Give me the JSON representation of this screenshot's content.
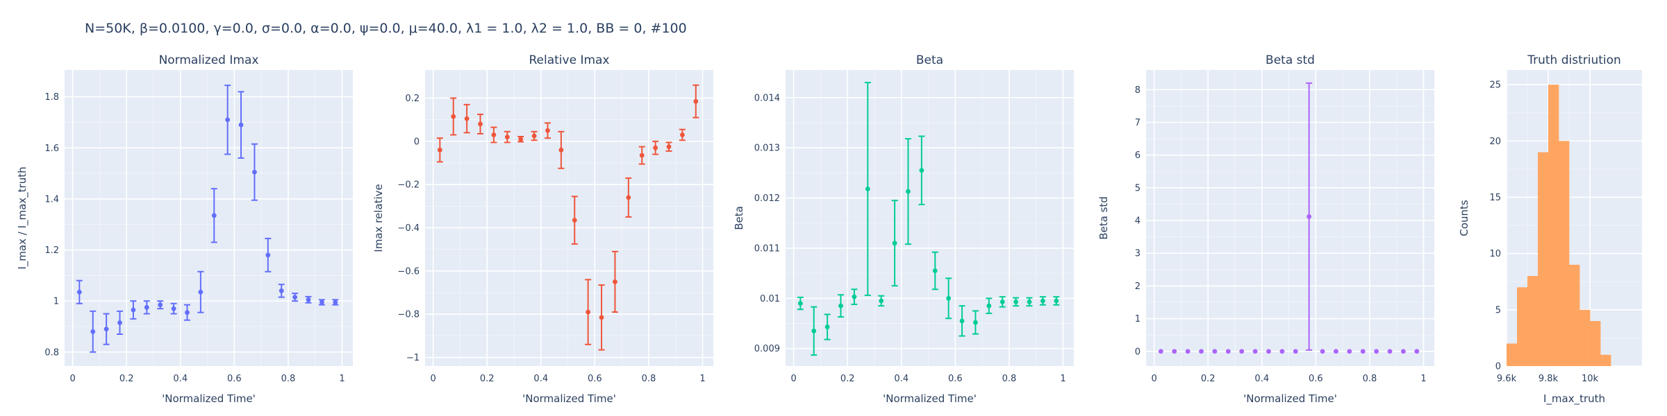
{
  "figure": {
    "title": "N=50K, β=0.0100, γ=0.0, σ=0.0,  α=0.0, ψ=0.0, μ=40.0, λ1 = 1.0, λ2 = 1.0, BB = 0, #100",
    "colors": {
      "plot_bg": "#e5ecf6",
      "grid": "#ffffff",
      "text": "#2a3f5f"
    }
  },
  "chart_data": [
    {
      "type": "scatter",
      "title": "Normalized Imax",
      "xlabel": "'Normalized Time'",
      "ylabel": "I_max / I_max_truth",
      "color": "#636efa",
      "xlim": [
        -0.03,
        1.04
      ],
      "ylim": [
        0.745,
        1.905
      ],
      "xticks": [
        0,
        0.2,
        0.4,
        0.6,
        0.8,
        1
      ],
      "xtick_labels": [
        "0",
        "0.2",
        "0.4",
        "0.6",
        "0.8",
        "1"
      ],
      "yticks": [
        0.8,
        1.0,
        1.2,
        1.4,
        1.6,
        1.8
      ],
      "ytick_labels": [
        "0.8",
        "1",
        "1.2",
        "1.4",
        "1.6",
        "1.8"
      ],
      "x": [
        0.025,
        0.075,
        0.125,
        0.175,
        0.225,
        0.275,
        0.325,
        0.375,
        0.425,
        0.475,
        0.525,
        0.575,
        0.625,
        0.675,
        0.725,
        0.775,
        0.825,
        0.875,
        0.925,
        0.975
      ],
      "y": [
        1.035,
        0.88,
        0.89,
        0.915,
        0.965,
        0.975,
        0.985,
        0.97,
        0.955,
        1.035,
        1.335,
        1.71,
        1.69,
        1.505,
        1.18,
        1.04,
        1.015,
        1.005,
        0.995,
        0.995
      ],
      "error": [
        0.045,
        0.08,
        0.06,
        0.045,
        0.035,
        0.025,
        0.015,
        0.02,
        0.03,
        0.08,
        0.105,
        0.135,
        0.13,
        0.11,
        0.065,
        0.025,
        0.015,
        0.012,
        0.01,
        0.01
      ]
    },
    {
      "type": "scatter",
      "title": "Relative Imax",
      "xlabel": "'Normalized Time'",
      "ylabel": "Imax relative",
      "color": "#ef553b",
      "xlim": [
        -0.03,
        1.04
      ],
      "ylim": [
        -1.04,
        0.33
      ],
      "xticks": [
        0,
        0.2,
        0.4,
        0.6,
        0.8,
        1
      ],
      "xtick_labels": [
        "0",
        "0.2",
        "0.4",
        "0.6",
        "0.8",
        "1"
      ],
      "yticks": [
        -1.0,
        -0.8,
        -0.6,
        -0.4,
        -0.2,
        0.0,
        0.2
      ],
      "ytick_labels": [
        "−1",
        "−0.8",
        "−0.6",
        "−0.4",
        "−0.2",
        "0",
        "0.2"
      ],
      "x": [
        0.025,
        0.075,
        0.125,
        0.175,
        0.225,
        0.275,
        0.325,
        0.375,
        0.425,
        0.475,
        0.525,
        0.575,
        0.625,
        0.675,
        0.725,
        0.775,
        0.825,
        0.875,
        0.925,
        0.975
      ],
      "y": [
        -0.04,
        0.115,
        0.105,
        0.08,
        0.03,
        0.02,
        0.01,
        0.025,
        0.05,
        -0.04,
        -0.365,
        -0.79,
        -0.815,
        -0.65,
        -0.26,
        -0.065,
        -0.03,
        -0.025,
        0.03,
        0.185
      ],
      "error": [
        0.055,
        0.085,
        0.065,
        0.045,
        0.035,
        0.025,
        0.012,
        0.02,
        0.035,
        0.085,
        0.11,
        0.15,
        0.15,
        0.14,
        0.09,
        0.04,
        0.03,
        0.02,
        0.025,
        0.075
      ]
    },
    {
      "type": "scatter",
      "title": "Beta",
      "xlabel": "'Normalized Time'",
      "ylabel": "Beta",
      "color": "#00cc96",
      "xlim": [
        -0.03,
        1.04
      ],
      "ylim": [
        0.00865,
        0.01455
      ],
      "xticks": [
        0,
        0.2,
        0.4,
        0.6,
        0.8,
        1
      ],
      "xtick_labels": [
        "0",
        "0.2",
        "0.4",
        "0.6",
        "0.8",
        "1"
      ],
      "yticks": [
        0.009,
        0.01,
        0.011,
        0.012,
        0.013,
        0.014
      ],
      "ytick_labels": [
        "0.009",
        "0.01",
        "0.011",
        "0.012",
        "0.013",
        "0.014"
      ],
      "x": [
        0.025,
        0.075,
        0.125,
        0.175,
        0.225,
        0.275,
        0.325,
        0.375,
        0.425,
        0.475,
        0.525,
        0.575,
        0.625,
        0.675,
        0.725,
        0.775,
        0.825,
        0.875,
        0.925,
        0.975
      ],
      "y": [
        0.0099,
        0.00935,
        0.00943,
        0.00985,
        0.01003,
        0.01218,
        0.00995,
        0.0111,
        0.01213,
        0.01255,
        0.01055,
        0.01,
        0.00955,
        0.00952,
        0.00985,
        0.00993,
        0.00993,
        0.00993,
        0.00995,
        0.00995
      ],
      "error": [
        0.00012,
        0.00048,
        0.00025,
        0.00022,
        0.00015,
        0.00212,
        0.0001,
        0.00085,
        0.00105,
        0.00068,
        0.00037,
        0.0004,
        0.0003,
        0.00023,
        0.00015,
        0.0001,
        8e-05,
        8e-05,
        8e-05,
        8e-05
      ]
    },
    {
      "type": "scatter",
      "title": "Beta std",
      "xlabel": "'Normalized Time'",
      "ylabel": "Beta std",
      "color": "#ab63fa",
      "xlim": [
        -0.03,
        1.04
      ],
      "ylim": [
        -0.45,
        8.6
      ],
      "xticks": [
        0,
        0.2,
        0.4,
        0.6,
        0.8,
        1
      ],
      "xtick_labels": [
        "0",
        "0.2",
        "0.4",
        "0.6",
        "0.8",
        "1"
      ],
      "yticks": [
        0,
        1,
        2,
        3,
        4,
        5,
        6,
        7,
        8
      ],
      "ytick_labels": [
        "0",
        "1",
        "2",
        "3",
        "4",
        "5",
        "6",
        "7",
        "8"
      ],
      "x": [
        0.025,
        0.075,
        0.125,
        0.175,
        0.225,
        0.275,
        0.325,
        0.375,
        0.425,
        0.475,
        0.525,
        0.575,
        0.625,
        0.675,
        0.725,
        0.775,
        0.825,
        0.875,
        0.925,
        0.975
      ],
      "y": [
        0.0,
        0.0,
        0.0,
        0.0,
        0.0,
        0.0,
        0.0,
        0.0,
        0.0,
        0.0,
        0.0,
        4.12,
        0.0,
        0.0,
        0.0,
        0.0,
        0.0,
        0.0,
        0.0,
        0.0
      ],
      "error": [
        0.0,
        0.0,
        0.0,
        0.0,
        0.0,
        0.0,
        0.0,
        0.0,
        0.0,
        0.0,
        0.0,
        4.08,
        0.0,
        0.0,
        0.0,
        0.0,
        0.0,
        0.0,
        0.0,
        0.0
      ]
    },
    {
      "type": "bar",
      "title": "Truth distriution",
      "xlabel": "I_max_truth",
      "ylabel": "Counts",
      "color": "#ffa15a",
      "xlim": [
        9600,
        10250
      ],
      "ylim": [
        0,
        26.3
      ],
      "xticks": [
        9600,
        9800,
        10000
      ],
      "xtick_labels": [
        "9.6k",
        "9.8k",
        "10k"
      ],
      "yticks": [
        0,
        5,
        10,
        15,
        20,
        25
      ],
      "ytick_labels": [
        "0",
        "5",
        "10",
        "15",
        "20",
        "25"
      ],
      "bin_edges": [
        9600,
        9625,
        9650,
        9675,
        9700,
        9725,
        9750,
        9775,
        9800,
        9825,
        9850,
        9875,
        9900,
        9925,
        9950,
        9975,
        10000,
        10025,
        10050,
        10075,
        10100,
        10125,
        10150,
        10175,
        10200,
        10225,
        10250
      ],
      "counts": [
        2,
        2,
        7,
        7,
        8,
        8,
        19,
        19,
        25,
        25,
        20,
        20,
        9,
        9,
        5,
        5,
        4,
        4,
        1,
        1,
        0,
        0,
        0,
        0,
        0,
        0
      ]
    }
  ]
}
